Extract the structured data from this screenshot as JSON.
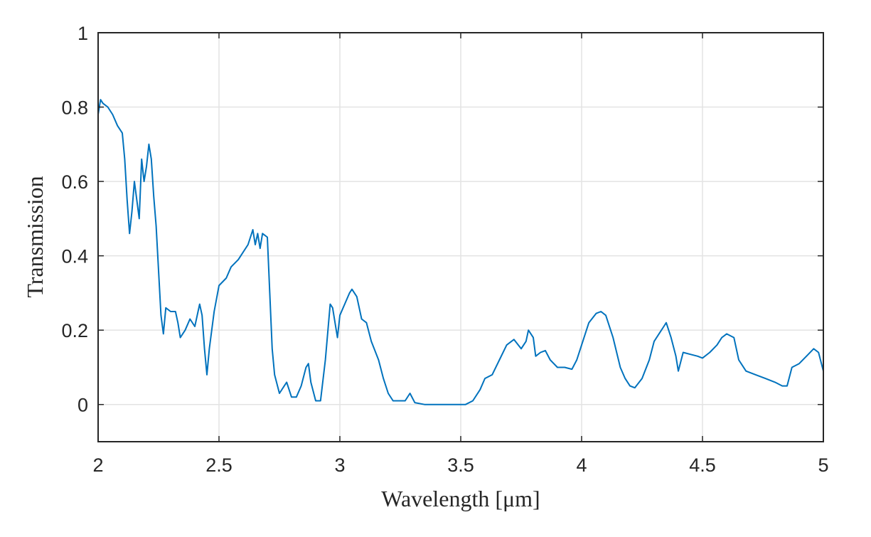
{
  "chart_data": {
    "type": "line",
    "title": "",
    "xlabel": "Wavelength [μm]",
    "ylabel": "Transmission",
    "xlim": [
      2,
      5
    ],
    "ylim": [
      -0.1,
      1
    ],
    "grid": true,
    "legend": "none",
    "x_ticks": [
      "2",
      "2.5",
      "3",
      "3.5",
      "4",
      "4.5",
      "5"
    ],
    "y_ticks": [
      "0",
      "0.2",
      "0.4",
      "0.6",
      "0.8",
      "1"
    ],
    "series": [
      {
        "color": "#0072bd",
        "points": [
          [
            2.0,
            0.78
          ],
          [
            2.01,
            0.82
          ],
          [
            2.02,
            0.81
          ],
          [
            2.04,
            0.8
          ],
          [
            2.06,
            0.78
          ],
          [
            2.08,
            0.75
          ],
          [
            2.1,
            0.73
          ],
          [
            2.11,
            0.66
          ],
          [
            2.12,
            0.55
          ],
          [
            2.13,
            0.46
          ],
          [
            2.14,
            0.52
          ],
          [
            2.15,
            0.6
          ],
          [
            2.16,
            0.55
          ],
          [
            2.17,
            0.5
          ],
          [
            2.18,
            0.66
          ],
          [
            2.19,
            0.6
          ],
          [
            2.2,
            0.64
          ],
          [
            2.21,
            0.7
          ],
          [
            2.22,
            0.66
          ],
          [
            2.23,
            0.56
          ],
          [
            2.24,
            0.48
          ],
          [
            2.25,
            0.36
          ],
          [
            2.26,
            0.24
          ],
          [
            2.27,
            0.19
          ],
          [
            2.28,
            0.26
          ],
          [
            2.3,
            0.25
          ],
          [
            2.32,
            0.25
          ],
          [
            2.33,
            0.22
          ],
          [
            2.34,
            0.18
          ],
          [
            2.36,
            0.2
          ],
          [
            2.38,
            0.23
          ],
          [
            2.4,
            0.21
          ],
          [
            2.42,
            0.27
          ],
          [
            2.43,
            0.24
          ],
          [
            2.44,
            0.15
          ],
          [
            2.45,
            0.08
          ],
          [
            2.46,
            0.15
          ],
          [
            2.48,
            0.25
          ],
          [
            2.5,
            0.32
          ],
          [
            2.53,
            0.34
          ],
          [
            2.55,
            0.37
          ],
          [
            2.58,
            0.39
          ],
          [
            2.6,
            0.41
          ],
          [
            2.62,
            0.43
          ],
          [
            2.64,
            0.47
          ],
          [
            2.65,
            0.43
          ],
          [
            2.66,
            0.46
          ],
          [
            2.67,
            0.42
          ],
          [
            2.68,
            0.46
          ],
          [
            2.7,
            0.45
          ],
          [
            2.71,
            0.3
          ],
          [
            2.72,
            0.15
          ],
          [
            2.73,
            0.08
          ],
          [
            2.75,
            0.03
          ],
          [
            2.77,
            0.05
          ],
          [
            2.78,
            0.06
          ],
          [
            2.8,
            0.02
          ],
          [
            2.82,
            0.02
          ],
          [
            2.84,
            0.05
          ],
          [
            2.86,
            0.1
          ],
          [
            2.87,
            0.11
          ],
          [
            2.88,
            0.06
          ],
          [
            2.9,
            0.01
          ],
          [
            2.92,
            0.01
          ],
          [
            2.94,
            0.12
          ],
          [
            2.96,
            0.27
          ],
          [
            2.97,
            0.26
          ],
          [
            2.98,
            0.22
          ],
          [
            2.99,
            0.18
          ],
          [
            3.0,
            0.24
          ],
          [
            3.02,
            0.27
          ],
          [
            3.04,
            0.3
          ],
          [
            3.05,
            0.31
          ],
          [
            3.07,
            0.29
          ],
          [
            3.09,
            0.23
          ],
          [
            3.11,
            0.22
          ],
          [
            3.13,
            0.17
          ],
          [
            3.16,
            0.12
          ],
          [
            3.18,
            0.07
          ],
          [
            3.2,
            0.03
          ],
          [
            3.22,
            0.01
          ],
          [
            3.25,
            0.01
          ],
          [
            3.27,
            0.01
          ],
          [
            3.29,
            0.03
          ],
          [
            3.31,
            0.005
          ],
          [
            3.35,
            0.0
          ],
          [
            3.45,
            0.0
          ],
          [
            3.52,
            0.0
          ],
          [
            3.55,
            0.01
          ],
          [
            3.58,
            0.04
          ],
          [
            3.6,
            0.07
          ],
          [
            3.63,
            0.08
          ],
          [
            3.66,
            0.12
          ],
          [
            3.69,
            0.16
          ],
          [
            3.72,
            0.175
          ],
          [
            3.75,
            0.15
          ],
          [
            3.77,
            0.17
          ],
          [
            3.78,
            0.2
          ],
          [
            3.8,
            0.18
          ],
          [
            3.81,
            0.13
          ],
          [
            3.83,
            0.14
          ],
          [
            3.85,
            0.145
          ],
          [
            3.87,
            0.12
          ],
          [
            3.9,
            0.1
          ],
          [
            3.93,
            0.1
          ],
          [
            3.96,
            0.095
          ],
          [
            3.98,
            0.12
          ],
          [
            4.0,
            0.16
          ],
          [
            4.03,
            0.22
          ],
          [
            4.06,
            0.245
          ],
          [
            4.08,
            0.25
          ],
          [
            4.1,
            0.24
          ],
          [
            4.13,
            0.18
          ],
          [
            4.16,
            0.1
          ],
          [
            4.18,
            0.07
          ],
          [
            4.2,
            0.05
          ],
          [
            4.22,
            0.045
          ],
          [
            4.25,
            0.07
          ],
          [
            4.28,
            0.12
          ],
          [
            4.3,
            0.17
          ],
          [
            4.32,
            0.19
          ],
          [
            4.34,
            0.21
          ],
          [
            4.35,
            0.22
          ],
          [
            4.37,
            0.18
          ],
          [
            4.39,
            0.13
          ],
          [
            4.4,
            0.09
          ],
          [
            4.42,
            0.14
          ],
          [
            4.45,
            0.135
          ],
          [
            4.48,
            0.13
          ],
          [
            4.5,
            0.125
          ],
          [
            4.53,
            0.14
          ],
          [
            4.56,
            0.16
          ],
          [
            4.58,
            0.18
          ],
          [
            4.6,
            0.19
          ],
          [
            4.63,
            0.18
          ],
          [
            4.65,
            0.12
          ],
          [
            4.68,
            0.09
          ],
          [
            4.72,
            0.08
          ],
          [
            4.76,
            0.07
          ],
          [
            4.8,
            0.06
          ],
          [
            4.83,
            0.05
          ],
          [
            4.85,
            0.05
          ],
          [
            4.87,
            0.1
          ],
          [
            4.9,
            0.11
          ],
          [
            4.93,
            0.13
          ],
          [
            4.96,
            0.15
          ],
          [
            4.98,
            0.14
          ],
          [
            5.0,
            0.09
          ]
        ]
      }
    ]
  }
}
